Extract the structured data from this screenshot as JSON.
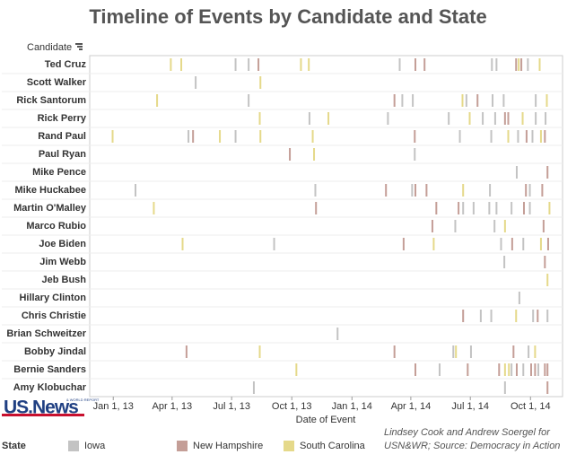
{
  "chart_data": {
    "type": "timeline",
    "title": "Timeline of Events by Candidate and State",
    "y_label": "Candidate",
    "x_label": "Date of Event",
    "legend_title": "State",
    "credit": "Lindsey Cook and Andrew Soergel for USN&WR; Source: Democracy in Action",
    "logo": "US.News",
    "logo_subtext": "& WORLD REPORT",
    "categories": [
      "Ted Cruz",
      "Scott Walker",
      "Rick Santorum",
      "Rick Perry",
      "Rand Paul",
      "Paul Ryan",
      "Mike Pence",
      "Mike Huckabee",
      "Martin O'Malley",
      "Marco Rubio",
      "Joe Biden",
      "Jim Webb",
      "Jeb Bush",
      "Hillary Clinton",
      "Chris Christie",
      "Brian Schweitzer",
      "Bobby Jindal",
      "Bernie Sanders",
      "Amy Klobuchar"
    ],
    "xlim": [
      "2012-11-26",
      "2014-11-19"
    ],
    "xticks": [
      {
        "value": "2013-01-01",
        "label": "Jan 1, 13"
      },
      {
        "value": "2013-04-01",
        "label": "Apr 1, 13"
      },
      {
        "value": "2013-07-01",
        "label": "Jul 1, 13"
      },
      {
        "value": "2013-10-01",
        "label": "Oct 1, 13"
      },
      {
        "value": "2014-01-01",
        "label": "Jan 1, 14"
      },
      {
        "value": "2014-04-01",
        "label": "Apr 1, 14"
      },
      {
        "value": "2014-07-01",
        "label": "Jul 1, 14"
      },
      {
        "value": "2014-10-01",
        "label": "Oct 1, 14"
      }
    ],
    "series": [
      {
        "name": "Iowa",
        "color": "#c3c3c3",
        "x": [
          "2013-07-07",
          "2013-07-27",
          "2014-03-15",
          "2014-08-03",
          "2014-08-10",
          "2014-09-27",
          "2013-05-07",
          "2013-07-27",
          "2014-03-19",
          "2014-04-04",
          "2014-06-25",
          "2014-08-04",
          "2014-08-21",
          "2014-10-09",
          "2013-10-28",
          "2014-02-25",
          "2014-05-29",
          "2014-07-20",
          "2014-08-08",
          "2014-10-09",
          "2014-10-24",
          "2013-04-26",
          "2013-07-07",
          "2014-06-15",
          "2014-08-02",
          "2014-09-12",
          "2014-10-04",
          "2014-04-07",
          "2014-09-10",
          "2013-02-04",
          "2013-11-06",
          "2014-04-03",
          "2014-07-31",
          "2014-09-30",
          "2014-06-20",
          "2014-07-06",
          "2014-07-30",
          "2014-08-10",
          "2014-09-02",
          "2014-09-30",
          "2014-06-08",
          "2014-08-07",
          "2013-09-04",
          "2014-08-17",
          "2014-09-20",
          "2014-08-22",
          "2014-09-14",
          "2014-07-17",
          "2014-08-02",
          "2014-10-05",
          "2014-10-27",
          "2013-12-10",
          "2014-06-05",
          "2014-07-02",
          "2014-09-28",
          "2014-05-15",
          "2014-09-02",
          "2014-09-20",
          "2014-10-13",
          "2013-08-04",
          "2014-08-23"
        ],
        "y": [
          "Ted Cruz",
          "Ted Cruz",
          "Ted Cruz",
          "Ted Cruz",
          "Ted Cruz",
          "Ted Cruz",
          "Scott Walker",
          "Rick Santorum",
          "Rick Santorum",
          "Rick Santorum",
          "Rick Santorum",
          "Rick Santorum",
          "Rick Santorum",
          "Rick Santorum",
          "Rick Perry",
          "Rick Perry",
          "Rick Perry",
          "Rick Perry",
          "Rick Perry",
          "Rick Perry",
          "Rick Perry",
          "Rand Paul",
          "Rand Paul",
          "Rand Paul",
          "Rand Paul",
          "Rand Paul",
          "Rand Paul",
          "Paul Ryan",
          "Mike Pence",
          "Mike Huckabee",
          "Mike Huckabee",
          "Mike Huckabee",
          "Mike Huckabee",
          "Mike Huckabee",
          "Martin O'Malley",
          "Martin O'Malley",
          "Martin O'Malley",
          "Martin O'Malley",
          "Martin O'Malley",
          "Martin O'Malley",
          "Marco Rubio",
          "Marco Rubio",
          "Joe Biden",
          "Joe Biden",
          "Joe Biden",
          "Jim Webb",
          "Hillary Clinton",
          "Chris Christie",
          "Chris Christie",
          "Chris Christie",
          "Chris Christie",
          "Brian Schweitzer",
          "Bobby Jindal",
          "Bobby Jindal",
          "Bobby Jindal",
          "Bernie Sanders",
          "Bernie Sanders",
          "Bernie Sanders",
          "Bernie Sanders",
          "Amy Klobuchar",
          "Amy Klobuchar"
        ]
      },
      {
        "name": "New Hampshire",
        "color": "#c49e97",
        "x": [
          "2013-08-11",
          "2014-04-08",
          "2014-04-22",
          "2014-09-09",
          "2014-09-17",
          "2014-03-07",
          "2014-07-12",
          "2014-08-23",
          "2014-08-28",
          "2013-05-03",
          "2014-04-07",
          "2014-09-25",
          "2014-10-23",
          "2013-09-28",
          "2014-10-27",
          "2014-02-22",
          "2014-04-08",
          "2014-04-25",
          "2014-09-24",
          "2014-10-19",
          "2013-11-07",
          "2014-05-10",
          "2014-06-13",
          "2014-09-21",
          "2014-05-04",
          "2014-10-21",
          "2014-03-21",
          "2014-09-03",
          "2014-10-28",
          "2014-10-23",
          "2014-06-20",
          "2014-10-12",
          "2013-04-23",
          "2014-03-07",
          "2014-09-05",
          "2014-04-08",
          "2014-06-27",
          "2014-08-14",
          "2014-09-10",
          "2014-10-02",
          "2014-10-08",
          "2014-10-23",
          "2014-10-27",
          "2014-10-27"
        ],
        "y": [
          "Ted Cruz",
          "Ted Cruz",
          "Ted Cruz",
          "Ted Cruz",
          "Ted Cruz",
          "Rick Santorum",
          "Rick Santorum",
          "Rick Perry",
          "Rick Perry",
          "Rand Paul",
          "Rand Paul",
          "Rand Paul",
          "Rand Paul",
          "Paul Ryan",
          "Mike Pence",
          "Mike Huckabee",
          "Mike Huckabee",
          "Mike Huckabee",
          "Mike Huckabee",
          "Mike Huckabee",
          "Martin O'Malley",
          "Martin O'Malley",
          "Martin O'Malley",
          "Martin O'Malley",
          "Marco Rubio",
          "Marco Rubio",
          "Joe Biden",
          "Joe Biden",
          "Joe Biden",
          "Jim Webb",
          "Chris Christie",
          "Chris Christie",
          "Bobby Jindal",
          "Bobby Jindal",
          "Bobby Jindal",
          "Bernie Sanders",
          "Bernie Sanders",
          "Bernie Sanders",
          "Bernie Sanders",
          "Bernie Sanders",
          "Bernie Sanders",
          "Bernie Sanders",
          "Bernie Sanders",
          "Amy Klobuchar"
        ]
      },
      {
        "name": "South Carolina",
        "color": "#e5d98a",
        "x": [
          "2013-03-30",
          "2013-04-15",
          "2013-10-15",
          "2013-10-27",
          "2014-09-13",
          "2014-10-15",
          "2013-08-14",
          "2013-03-09",
          "2014-06-19",
          "2014-10-26",
          "2013-08-13",
          "2013-11-26",
          "2014-06-30",
          "2014-09-19",
          "2012-12-31",
          "2013-06-13",
          "2013-08-14",
          "2013-11-02",
          "2014-08-28",
          "2014-10-17",
          "2013-11-04",
          "2014-06-20",
          "2013-03-04",
          "2014-10-30",
          "2014-08-23",
          "2013-04-17",
          "2014-05-06",
          "2014-10-17",
          "2014-10-27",
          "2014-09-09",
          "2013-08-13",
          "2014-06-09",
          "2014-10-08",
          "2013-10-08",
          "2014-08-23",
          "2014-08-29"
        ],
        "y": [
          "Ted Cruz",
          "Ted Cruz",
          "Ted Cruz",
          "Ted Cruz",
          "Ted Cruz",
          "Ted Cruz",
          "Scott Walker",
          "Rick Santorum",
          "Rick Santorum",
          "Rick Santorum",
          "Rick Perry",
          "Rick Perry",
          "Rick Perry",
          "Rick Perry",
          "Rand Paul",
          "Rand Paul",
          "Rand Paul",
          "Rand Paul",
          "Rand Paul",
          "Rand Paul",
          "Paul Ryan",
          "Mike Huckabee",
          "Martin O'Malley",
          "Martin O'Malley",
          "Marco Rubio",
          "Joe Biden",
          "Joe Biden",
          "Joe Biden",
          "Jeb Bush",
          "Chris Christie",
          "Bobby Jindal",
          "Bobby Jindal",
          "Bobby Jindal",
          "Bernie Sanders",
          "Bernie Sanders",
          "Bernie Sanders"
        ]
      }
    ]
  }
}
